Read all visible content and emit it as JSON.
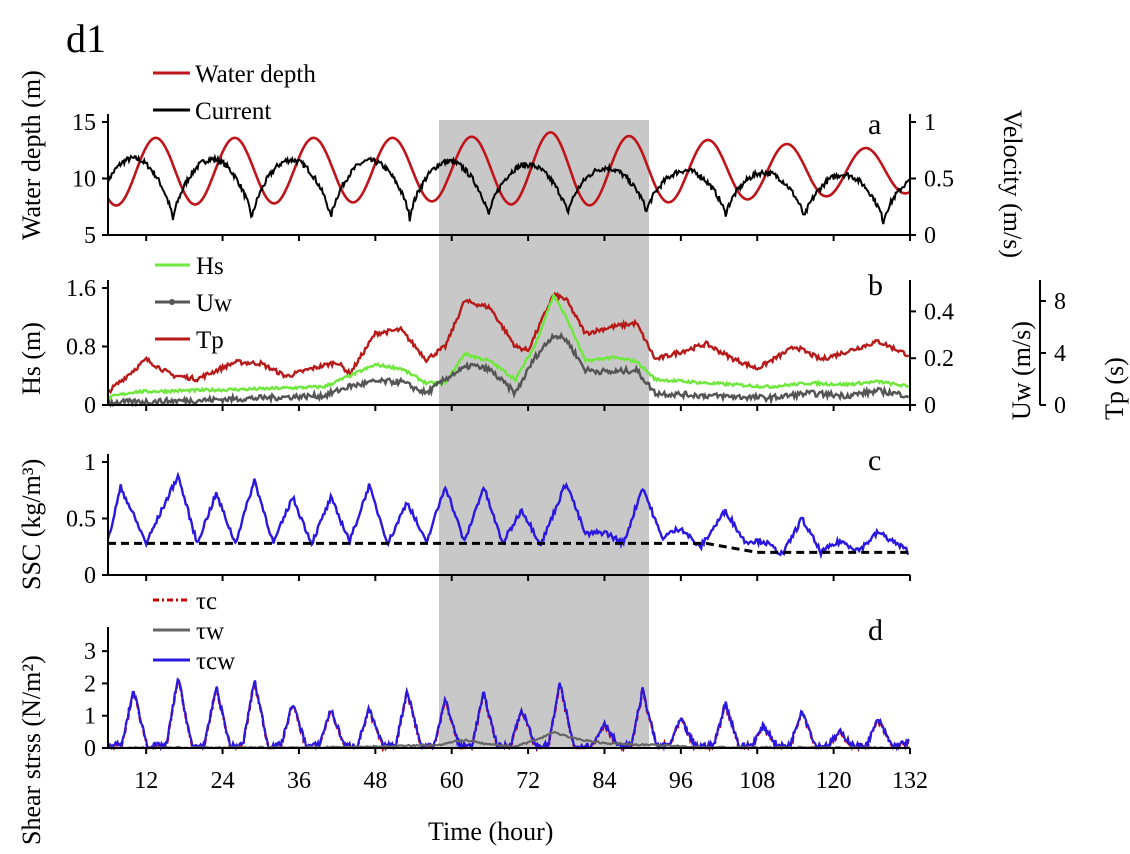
{
  "figure_label": "d1",
  "colors": {
    "water_depth": "#c0141b",
    "current": "#000000",
    "hs": "#6ee83c",
    "uw": "#555555",
    "tp": "#b81a1a",
    "ssc": "#2a18e0",
    "ssc_threshold": "#000000",
    "tau_c": "#c80000",
    "tau_w": "#666666",
    "tau_cw": "#2a18e0",
    "highlight": "#c8c8c8"
  },
  "chart_data": [
    {
      "panel": "a",
      "type": "line",
      "xlim": [
        6,
        132
      ],
      "ylabel_left": "Water depth (m)",
      "ylim_left": [
        5,
        15
      ],
      "yticks_left": [
        "5",
        "10",
        "15"
      ],
      "ylabel_right": "Velocity (m/s)",
      "ylim_right": [
        0,
        1
      ],
      "yticks_right": [
        "0",
        "0.5",
        "1"
      ],
      "legend": [
        "Water depth",
        "Current"
      ],
      "series": [
        {
          "name": "Water depth",
          "axis": "left",
          "model": {
            "mean": [
              10.6,
              10.8,
              10.8,
              10.6
            ],
            "amp": [
              3.0,
              2.8,
              3.3,
              1.9
            ],
            "phase_peak": 13.5,
            "period": 12.4,
            "amp_times": [
              6,
              60,
              76,
              132
            ]
          }
        },
        {
          "name": "Current",
          "axis": "right",
          "model": {
            "peak": [
              0.68,
              0.65,
              0.58,
              0.52
            ],
            "trough": [
              0.12,
              0.15,
              0.2,
              0.1
            ],
            "half_period": 6.2,
            "first_peak": 10.0,
            "peak_times": [
              6,
              60,
              90,
              132
            ]
          }
        }
      ],
      "shaded_region": [
        58,
        91
      ]
    },
    {
      "panel": "b",
      "type": "line",
      "xlim": [
        6,
        132
      ],
      "ylabel_left": "Hs (m)",
      "ylim_left": [
        0,
        1.6
      ],
      "yticks_left": [
        "0",
        "0.8",
        "1.6"
      ],
      "ylabel_right1": "Uw (m/s)",
      "ylim_right1": [
        0,
        0.5
      ],
      "yticks_right1": [
        "0",
        "0.2",
        "0.4"
      ],
      "ylabel_right2": "Tp (s)",
      "ylim_right2": [
        0,
        9
      ],
      "yticks_right2": [
        "0",
        "4",
        "8"
      ],
      "legend": [
        "Hs",
        "Uw",
        "Tp"
      ],
      "series": [
        {
          "name": "Hs",
          "axis": "left",
          "points": [
            [
              6,
              0.1
            ],
            [
              10,
              0.18
            ],
            [
              20,
              0.2
            ],
            [
              30,
              0.22
            ],
            [
              40,
              0.25
            ],
            [
              44,
              0.4
            ],
            [
              48,
              0.55
            ],
            [
              52,
              0.5
            ],
            [
              56,
              0.3
            ],
            [
              59,
              0.3
            ],
            [
              62,
              0.7
            ],
            [
              66,
              0.6
            ],
            [
              70,
              0.35
            ],
            [
              73,
              0.8
            ],
            [
              76,
              1.5
            ],
            [
              78,
              1.2
            ],
            [
              81,
              0.6
            ],
            [
              85,
              0.65
            ],
            [
              89,
              0.6
            ],
            [
              92,
              0.35
            ],
            [
              100,
              0.3
            ],
            [
              110,
              0.25
            ],
            [
              116,
              0.3
            ],
            [
              122,
              0.28
            ],
            [
              127,
              0.32
            ],
            [
              132,
              0.25
            ]
          ]
        },
        {
          "name": "Uw",
          "axis": "right1",
          "points": [
            [
              6,
              0.01
            ],
            [
              20,
              0.02
            ],
            [
              40,
              0.04
            ],
            [
              44,
              0.08
            ],
            [
              48,
              0.1
            ],
            [
              52,
              0.1
            ],
            [
              56,
              0.05
            ],
            [
              60,
              0.13
            ],
            [
              63,
              0.17
            ],
            [
              66,
              0.15
            ],
            [
              70,
              0.05
            ],
            [
              73,
              0.2
            ],
            [
              76,
              0.3
            ],
            [
              78,
              0.28
            ],
            [
              81,
              0.15
            ],
            [
              85,
              0.14
            ],
            [
              89,
              0.15
            ],
            [
              92,
              0.05
            ],
            [
              100,
              0.04
            ],
            [
              110,
              0.03
            ],
            [
              116,
              0.05
            ],
            [
              122,
              0.04
            ],
            [
              127,
              0.06
            ],
            [
              132,
              0.04
            ]
          ]
        },
        {
          "name": "Tp",
          "axis": "right2",
          "points": [
            [
              6,
              1
            ],
            [
              12,
              3.5
            ],
            [
              16,
              2.3
            ],
            [
              20,
              2
            ],
            [
              26,
              3.3
            ],
            [
              30,
              3.2
            ],
            [
              34,
              2.2
            ],
            [
              38,
              2.8
            ],
            [
              42,
              3.3
            ],
            [
              44,
              2.4
            ],
            [
              48,
              5.5
            ],
            [
              52,
              5.8
            ],
            [
              56,
              3.5
            ],
            [
              59,
              4.5
            ],
            [
              62,
              8
            ],
            [
              66,
              7.5
            ],
            [
              70,
              4.5
            ],
            [
              72,
              4.2
            ],
            [
              76,
              8.5
            ],
            [
              78,
              8.1
            ],
            [
              81,
              5.5
            ],
            [
              85,
              6
            ],
            [
              89,
              6.3
            ],
            [
              92,
              3.5
            ],
            [
              100,
              4.7
            ],
            [
              104,
              3.6
            ],
            [
              108,
              2.8
            ],
            [
              114,
              4.5
            ],
            [
              118,
              3.5
            ],
            [
              122,
              4.1
            ],
            [
              127,
              4.9
            ],
            [
              132,
              3.8
            ]
          ]
        }
      ],
      "shaded_region": [
        58,
        91
      ]
    },
    {
      "panel": "c",
      "type": "line",
      "xlim": [
        6,
        132
      ],
      "ylabel": "SSC (kg/m³)",
      "ylim": [
        0,
        1
      ],
      "yticks": [
        "0",
        "0.5",
        "1"
      ],
      "series": [
        {
          "name": "SSC",
          "model": {
            "peaks": [
              [
                8,
                0.78
              ],
              [
                17,
                0.88
              ],
              [
                23,
                0.72
              ],
              [
                29,
                0.84
              ],
              [
                35,
                0.69
              ],
              [
                41,
                0.68
              ],
              [
                47,
                0.79
              ],
              [
                53,
                0.65
              ],
              [
                59,
                0.79
              ],
              [
                65,
                0.78
              ],
              [
                71,
                0.58
              ],
              [
                78,
                0.82
              ],
              [
                84,
                0.38
              ],
              [
                90,
                0.78
              ],
              [
                96,
                0.42
              ],
              [
                103,
                0.57
              ],
              [
                109,
                0.3
              ],
              [
                115,
                0.5
              ],
              [
                121,
                0.3
              ],
              [
                127,
                0.38
              ]
            ],
            "troughs": [
              [
                6,
                0.3
              ],
              [
                12,
                0.28
              ],
              [
                20,
                0.28
              ],
              [
                26,
                0.28
              ],
              [
                32,
                0.28
              ],
              [
                38,
                0.28
              ],
              [
                44,
                0.3
              ],
              [
                50,
                0.28
              ],
              [
                56,
                0.28
              ],
              [
                62,
                0.29
              ],
              [
                68,
                0.28
              ],
              [
                74,
                0.27
              ],
              [
                81,
                0.36
              ],
              [
                87,
                0.28
              ],
              [
                93,
                0.33
              ],
              [
                99,
                0.24
              ],
              [
                106,
                0.3
              ],
              [
                112,
                0.18
              ],
              [
                118,
                0.2
              ],
              [
                124,
                0.22
              ],
              [
                132,
                0.2
              ]
            ]
          }
        },
        {
          "name": "threshold",
          "style": "dashed",
          "points": [
            [
              6,
              0.28
            ],
            [
              100,
              0.28
            ],
            [
              108,
              0.2
            ],
            [
              132,
              0.2
            ]
          ]
        }
      ],
      "shaded_region": [
        58,
        91
      ]
    },
    {
      "panel": "d",
      "type": "line",
      "xlim": [
        6,
        132
      ],
      "xticks": [
        "12",
        "24",
        "36",
        "48",
        "60",
        "72",
        "84",
        "96",
        "108",
        "120",
        "132"
      ],
      "xlabel": "Time (hour)",
      "ylabel": "Shear strss (N/m²)",
      "ylim": [
        0,
        3.5
      ],
      "yticks": [
        "0",
        "1",
        "2",
        "3"
      ],
      "legend": [
        "τc",
        "τw",
        "τcw"
      ],
      "series": [
        {
          "name": "τcw",
          "model": {
            "peaks": [
              [
                10,
                1.8
              ],
              [
                17,
                2.2
              ],
              [
                23,
                1.9
              ],
              [
                29,
                2.1
              ],
              [
                35,
                1.4
              ],
              [
                41,
                1.2
              ],
              [
                47,
                1.2
              ],
              [
                53,
                1.8
              ],
              [
                59,
                1.5
              ],
              [
                65,
                1.7
              ],
              [
                71,
                1.2
              ],
              [
                77,
                2.0
              ],
              [
                84,
                0.8
              ],
              [
                90,
                1.8
              ],
              [
                96,
                0.9
              ],
              [
                103,
                1.4
              ],
              [
                109,
                0.7
              ],
              [
                115,
                1.2
              ],
              [
                121,
                0.5
              ],
              [
                127,
                0.9
              ]
            ]
          }
        },
        {
          "name": "τw",
          "points": [
            [
              6,
              0
            ],
            [
              40,
              0.02
            ],
            [
              50,
              0.05
            ],
            [
              58,
              0.1
            ],
            [
              62,
              0.25
            ],
            [
              66,
              0.1
            ],
            [
              70,
              0.05
            ],
            [
              74,
              0.3
            ],
            [
              76,
              0.5
            ],
            [
              79,
              0.3
            ],
            [
              84,
              0.15
            ],
            [
              90,
              0.1
            ],
            [
              100,
              0.02
            ],
            [
              132,
              0
            ]
          ]
        }
      ],
      "shaded_region": [
        58,
        91
      ]
    }
  ]
}
